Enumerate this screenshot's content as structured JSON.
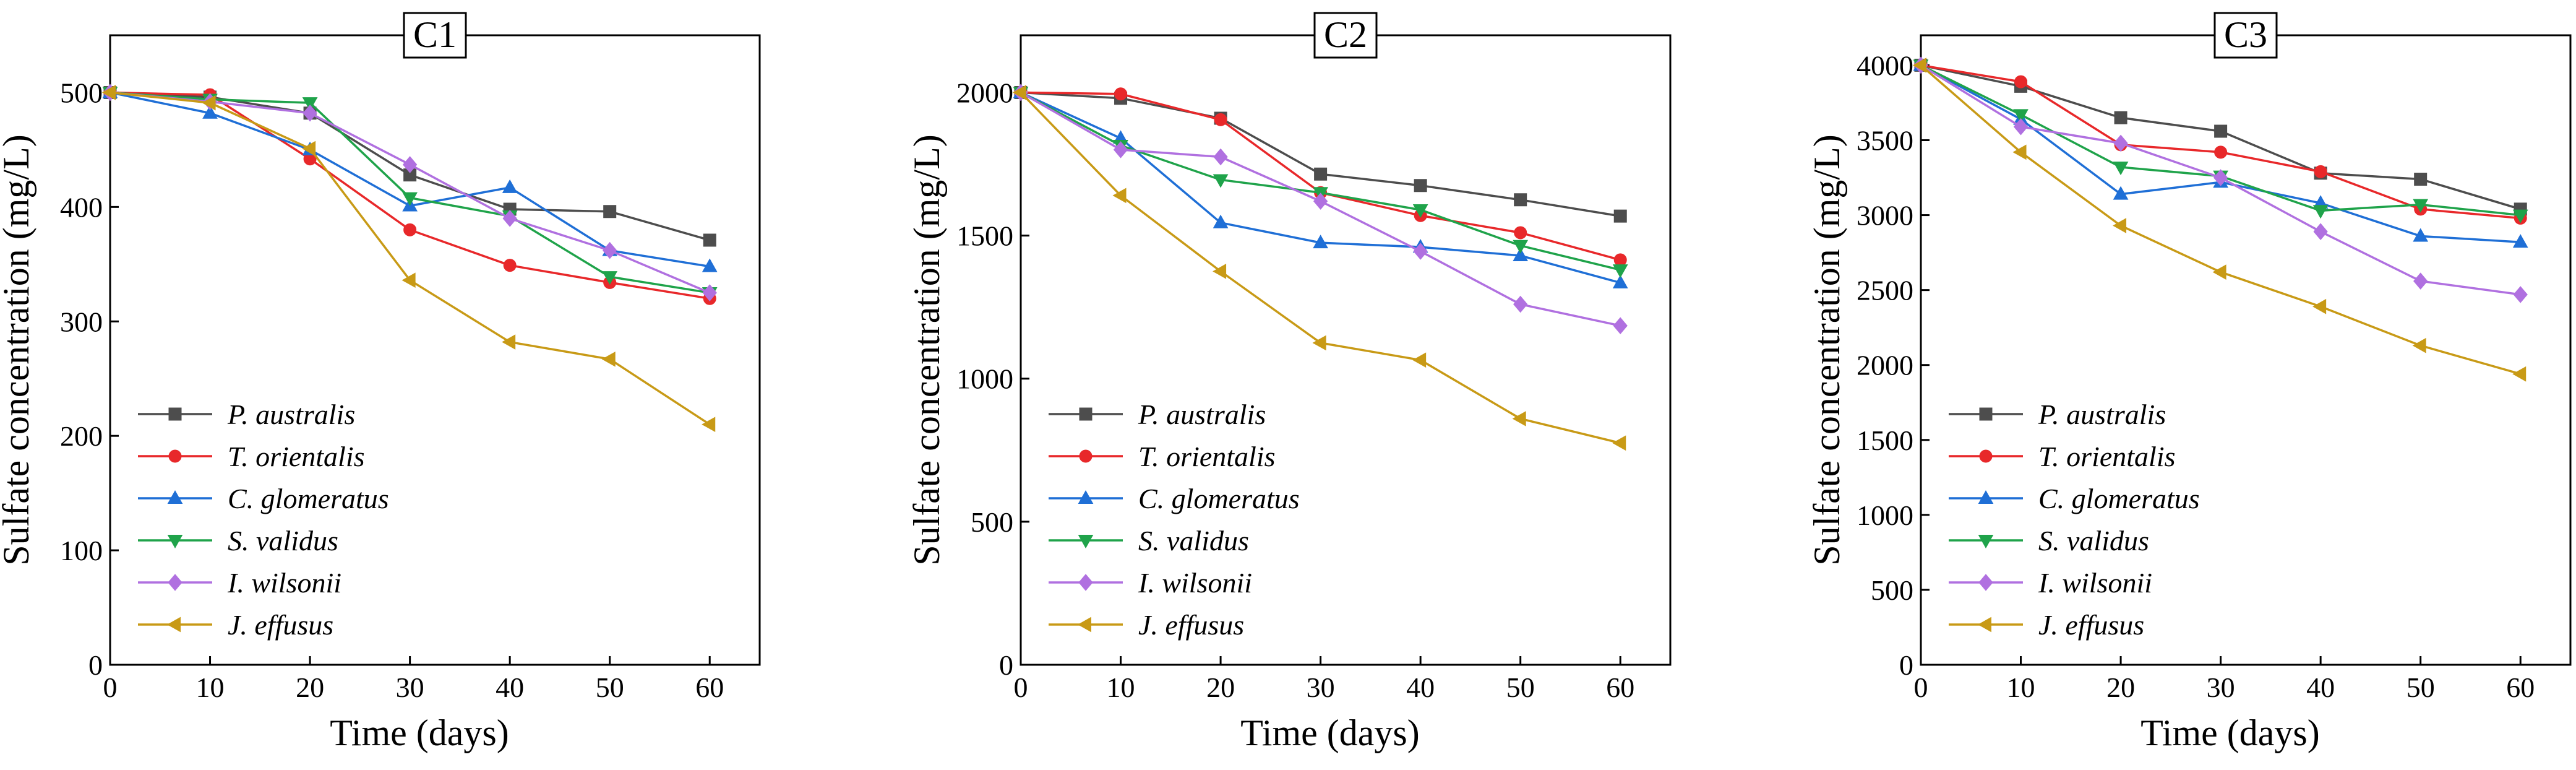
{
  "colors": {
    "P. australis": "#4d4d4d",
    "T. orientalis": "#e8282a",
    "C. glomeratus": "#1f6fd6",
    "S. validus": "#1fa34a",
    "I. wilsonii": "#b070e0",
    "J. effusus": "#c89a16"
  },
  "chart_data": [
    {
      "type": "line",
      "title": "C1",
      "xlabel": "Time (days)",
      "ylabel": "Sulfate concentration (mg/L)",
      "x": [
        0,
        10,
        20,
        30,
        40,
        50,
        60
      ],
      "xlim": [
        0,
        65
      ],
      "ylim": [
        0,
        550
      ],
      "xticks": [
        0,
        10,
        20,
        30,
        40,
        50,
        60
      ],
      "yticks": [
        0,
        100,
        200,
        300,
        400,
        500
      ],
      "legend": "lower-left",
      "series": [
        {
          "name": "P. australis",
          "marker": "square",
          "values": [
            500,
            496,
            482,
            428,
            398,
            396,
            371
          ]
        },
        {
          "name": "T. orientalis",
          "marker": "circle",
          "values": [
            500,
            498,
            442,
            380,
            349,
            334,
            320
          ]
        },
        {
          "name": "C. glomeratus",
          "marker": "triangle-up",
          "values": [
            500,
            482,
            450,
            401,
            417,
            362,
            348
          ]
        },
        {
          "name": "S. validus",
          "marker": "triangle-down",
          "values": [
            500,
            494,
            491,
            408,
            392,
            339,
            325
          ]
        },
        {
          "name": "I. wilsonii",
          "marker": "diamond",
          "values": [
            500,
            492,
            482,
            437,
            390,
            362,
            325
          ]
        },
        {
          "name": "J. effusus",
          "marker": "triangle-left",
          "values": [
            500,
            491,
            451,
            336,
            282,
            267,
            210
          ]
        }
      ]
    },
    {
      "type": "line",
      "title": "C2",
      "xlabel": "Time (days)",
      "ylabel": "Sulfate concentration (mg/L)",
      "x": [
        0,
        10,
        20,
        30,
        40,
        50,
        60
      ],
      "xlim": [
        0,
        65
      ],
      "ylim": [
        0,
        2200
      ],
      "xticks": [
        0,
        10,
        20,
        30,
        40,
        50,
        60
      ],
      "yticks": [
        0,
        500,
        1000,
        1500,
        2000
      ],
      "legend": "lower-left",
      "series": [
        {
          "name": "P. australis",
          "marker": "square",
          "values": [
            2000,
            1980,
            1910,
            1715,
            1675,
            1625,
            1568
          ]
        },
        {
          "name": "T. orientalis",
          "marker": "circle",
          "values": [
            2000,
            1995,
            1905,
            1650,
            1570,
            1510,
            1415
          ]
        },
        {
          "name": "C. glomeratus",
          "marker": "triangle-up",
          "values": [
            2000,
            1840,
            1545,
            1475,
            1460,
            1430,
            1335
          ]
        },
        {
          "name": "S. validus",
          "marker": "triangle-down",
          "values": [
            2000,
            1815,
            1695,
            1650,
            1590,
            1465,
            1380
          ]
        },
        {
          "name": "I. wilsonii",
          "marker": "diamond",
          "values": [
            2000,
            1800,
            1775,
            1620,
            1445,
            1260,
            1185
          ]
        },
        {
          "name": "J. effusus",
          "marker": "triangle-left",
          "values": [
            2000,
            1640,
            1375,
            1125,
            1065,
            860,
            775
          ]
        }
      ]
    },
    {
      "type": "line",
      "title": "C3",
      "xlabel": "Time (days)",
      "ylabel": "Sulfate concentration (mg/L)",
      "x": [
        0,
        10,
        20,
        30,
        40,
        50,
        60
      ],
      "xlim": [
        0,
        65
      ],
      "ylim": [
        0,
        4200
      ],
      "xticks": [
        0,
        10,
        20,
        30,
        40,
        50,
        60
      ],
      "yticks": [
        0,
        500,
        1000,
        1500,
        2000,
        2500,
        3000,
        3500,
        4000
      ],
      "legend": "lower-left",
      "series": [
        {
          "name": "P. australis",
          "marker": "square",
          "values": [
            4000,
            3860,
            3650,
            3560,
            3280,
            3240,
            3040
          ]
        },
        {
          "name": "T. orientalis",
          "marker": "circle",
          "values": [
            4000,
            3890,
            3470,
            3420,
            3290,
            3040,
            2980
          ]
        },
        {
          "name": "C. glomeratus",
          "marker": "triangle-up",
          "values": [
            4000,
            3640,
            3140,
            3220,
            3080,
            2860,
            2820
          ]
        },
        {
          "name": "S. validus",
          "marker": "triangle-down",
          "values": [
            4000,
            3670,
            3320,
            3260,
            3030,
            3070,
            3000
          ]
        },
        {
          "name": "I. wilsonii",
          "marker": "diamond",
          "values": [
            4000,
            3590,
            3480,
            3250,
            2890,
            2560,
            2470
          ]
        },
        {
          "name": "J. effusus",
          "marker": "triangle-left",
          "values": [
            4000,
            3420,
            2930,
            2620,
            2390,
            2130,
            1940
          ]
        }
      ]
    }
  ]
}
